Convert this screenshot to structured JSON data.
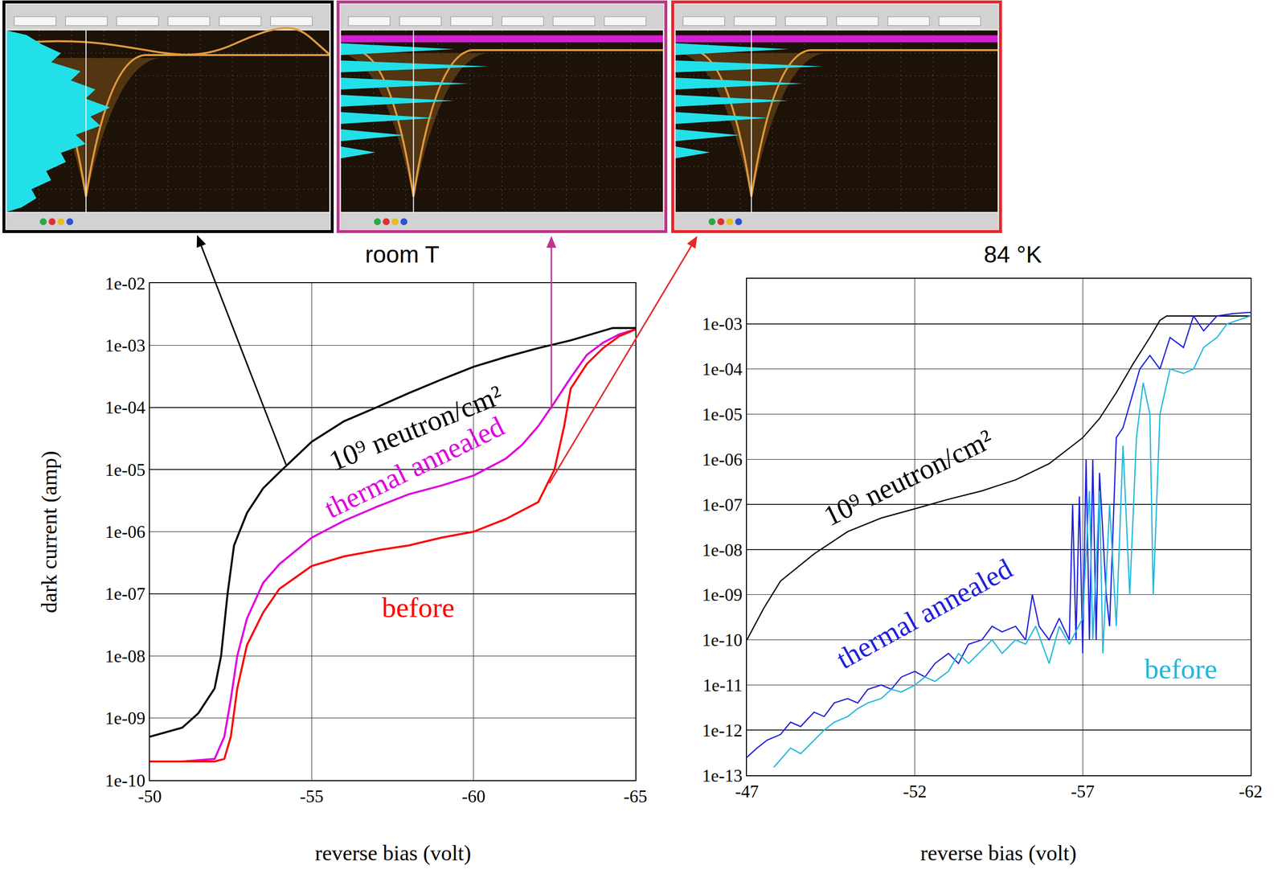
{
  "chart_data": [
    {
      "type": "line",
      "title": "room T",
      "x_label": "reverse bias (volt)",
      "y_label": "dark current (amp)",
      "log": "y",
      "grid": true,
      "xlim": [
        -50,
        -65
      ],
      "xticks": [
        -50,
        -55,
        -60,
        -65
      ],
      "ylim": [
        1e-10,
        0.01
      ],
      "yticks": [
        {
          "value": 1e-10,
          "label": "1e-10"
        },
        {
          "value": 1e-09,
          "label": "1e-09"
        },
        {
          "value": 1e-08,
          "label": "1e-08"
        },
        {
          "value": 1e-07,
          "label": "1e-07"
        },
        {
          "value": 1e-06,
          "label": "1e-06"
        },
        {
          "value": 1e-05,
          "label": "1e-05"
        },
        {
          "value": 0.0001,
          "label": "1e-04"
        },
        {
          "value": 0.001,
          "label": "1e-03"
        },
        {
          "value": 0.01,
          "label": "1e-02"
        }
      ],
      "series": [
        {
          "name": "10⁹ neutron/cm²",
          "color": "#000000",
          "x": [
            -50,
            -51,
            -51.5,
            -52,
            -52.2,
            -52.4,
            -52.6,
            -53,
            -53.5,
            -54,
            -55,
            -56,
            -57,
            -58,
            -59,
            -60,
            -61,
            -62,
            -63,
            -64,
            -64.3,
            -65
          ],
          "values": [
            5e-10,
            7e-10,
            1.2e-09,
            3e-09,
            1e-08,
            1e-07,
            6e-07,
            2e-06,
            5e-06,
            9e-06,
            2.8e-05,
            6e-05,
            0.0001,
            0.00017,
            0.00028,
            0.00045,
            0.00065,
            0.0009,
            0.0012,
            0.0017,
            0.0019,
            0.0019
          ]
        },
        {
          "name": "thermal annealed",
          "color": "#e000e0",
          "x": [
            -50,
            -51,
            -52,
            -52.3,
            -52.5,
            -52.7,
            -53,
            -53.5,
            -54,
            -55,
            -56,
            -57,
            -58,
            -59,
            -60,
            -61,
            -61.5,
            -62,
            -62.5,
            -63,
            -63.5,
            -64,
            -64.5,
            -65
          ],
          "values": [
            2e-10,
            2e-10,
            2.2e-10,
            5e-10,
            2e-09,
            1e-08,
            4e-08,
            1.5e-07,
            3e-07,
            8e-07,
            1.5e-06,
            2.5e-06,
            4e-06,
            5.5e-06,
            8e-06,
            1.5e-05,
            2.5e-05,
            5e-05,
            0.00012,
            0.0003,
            0.0007,
            0.0011,
            0.0015,
            0.0018
          ]
        },
        {
          "name": "before",
          "color": "#ff0000",
          "x": [
            -50,
            -51,
            -52,
            -52.3,
            -52.5,
            -52.7,
            -53,
            -53.5,
            -54,
            -55,
            -56,
            -57,
            -58,
            -59,
            -60,
            -61,
            -62,
            -62.5,
            -62.8,
            -63,
            -63.5,
            -64,
            -64.5,
            -65
          ],
          "values": [
            2e-10,
            2e-10,
            2e-10,
            2.2e-10,
            5e-10,
            3e-09,
            1.5e-08,
            5e-08,
            1.2e-07,
            2.8e-07,
            4e-07,
            5e-07,
            6e-07,
            8e-07,
            1e-06,
            1.6e-06,
            3e-06,
            1e-05,
            5e-05,
            0.0002,
            0.0005,
            0.0009,
            0.0014,
            0.0018
          ]
        }
      ]
    },
    {
      "type": "line",
      "title": "84 °K",
      "x_label": "reverse bias (volt)",
      "log": "y",
      "grid": true,
      "xlim": [
        -47,
        -62
      ],
      "xticks": [
        -47,
        -52,
        -57,
        -62
      ],
      "ylim": [
        1e-13,
        0.01
      ],
      "yticks": [
        {
          "value": 1e-13,
          "label": "1e-13"
        },
        {
          "value": 1e-12,
          "label": "1e-12"
        },
        {
          "value": 1e-11,
          "label": "1e-11"
        },
        {
          "value": 1e-10,
          "label": "1e-10"
        },
        {
          "value": 1e-09,
          "label": "1e-09"
        },
        {
          "value": 1e-08,
          "label": "1e-08"
        },
        {
          "value": 1e-07,
          "label": "1e-07"
        },
        {
          "value": 1e-06,
          "label": "1e-06"
        },
        {
          "value": 1e-05,
          "label": "1e-05"
        },
        {
          "value": 0.0001,
          "label": "1e-04"
        },
        {
          "value": 0.001,
          "label": "1e-03"
        }
      ],
      "series": [
        {
          "name": "10⁹ neutron/cm²",
          "color": "#000000",
          "x": [
            -47,
            -47.5,
            -48,
            -49,
            -50,
            -51,
            -52,
            -53,
            -54,
            -55,
            -56,
            -57,
            -57.5,
            -58,
            -58.5,
            -59,
            -59.3,
            -59.5,
            -62
          ],
          "values": [
            1e-10,
            5e-10,
            2e-09,
            8e-09,
            2.5e-08,
            5e-08,
            8e-08,
            1.3e-07,
            2e-07,
            3.5e-07,
            8e-07,
            3e-06,
            8e-06,
            3e-05,
            0.00013,
            0.0005,
            0.0012,
            0.0015,
            0.0015
          ]
        },
        {
          "name": "thermal annealed",
          "color": "#2020e0",
          "x": [
            -47,
            -47.3,
            -47.6,
            -48,
            -48.3,
            -48.6,
            -49,
            -49.3,
            -49.6,
            -50,
            -50.3,
            -50.6,
            -51,
            -51.3,
            -51.6,
            -52,
            -52.3,
            -52.6,
            -53,
            -53.3,
            -53.6,
            -54,
            -54.3,
            -54.6,
            -55,
            -55.3,
            -55.5,
            -55.7,
            -56,
            -56.3,
            -56.6,
            -56.7,
            -56.8,
            -56.9,
            -57,
            -57.1,
            -57.2,
            -57.3,
            -57.4,
            -57.5,
            -57.7,
            -57.8,
            -58,
            -58.2,
            -58.5,
            -58.7,
            -59,
            -59.3,
            -59.6,
            -60,
            -60.3,
            -60.6,
            -61,
            -61.5,
            -62
          ],
          "values": [
            2.5e-13,
            4e-13,
            6e-13,
            8e-13,
            1.5e-12,
            1.2e-12,
            2.5e-12,
            2e-12,
            4e-12,
            5e-12,
            4e-12,
            8e-12,
            1e-11,
            8e-12,
            1.5e-11,
            2e-11,
            1.5e-11,
            3e-11,
            5e-11,
            3e-11,
            8e-11,
            1e-10,
            2e-10,
            1.5e-10,
            2e-10,
            1e-10,
            1e-09,
            2e-10,
            1e-10,
            3e-10,
            1e-10,
            1e-07,
            1e-10,
            1.5e-07,
            5e-11,
            1e-06,
            1e-10,
            1e-06,
            1e-10,
            5e-07,
            1e-09,
            2e-10,
            3e-06,
            5e-06,
            3e-05,
            0.0001,
            0.0002,
            0.0001,
            0.0005,
            0.0003,
            0.0015,
            0.0007,
            0.0015,
            0.0017,
            0.0018
          ]
        },
        {
          "name": "before",
          "color": "#22b8dc",
          "x": [
            -47.8,
            -48.3,
            -48.6,
            -49,
            -49.3,
            -49.6,
            -50,
            -50.3,
            -50.6,
            -51,
            -51.3,
            -51.6,
            -52,
            -52.3,
            -52.6,
            -53,
            -53.3,
            -53.6,
            -54,
            -54.3,
            -54.6,
            -55,
            -55.3,
            -55.6,
            -56,
            -56.3,
            -56.6,
            -57,
            -57.2,
            -57.3,
            -57.5,
            -57.6,
            -57.8,
            -58,
            -58.2,
            -58.4,
            -58.6,
            -58.8,
            -59,
            -59.1,
            -59.3,
            -59.6,
            -60,
            -60.3,
            -60.6,
            -61,
            -61.3,
            -61.6,
            -62
          ],
          "values": [
            1.5e-13,
            4e-13,
            3e-13,
            6e-13,
            1e-12,
            1.5e-12,
            2e-12,
            3e-12,
            4e-12,
            5e-12,
            8e-12,
            7e-12,
            1e-11,
            1.5e-11,
            1.2e-11,
            2e-11,
            5e-11,
            3e-11,
            6e-11,
            1e-10,
            5e-11,
            1e-10,
            8e-11,
            2e-10,
            3e-11,
            2e-10,
            8e-11,
            3e-10,
            2e-07,
            1e-10,
            2e-07,
            5e-11,
            1e-07,
            2e-10,
            2e-06,
            1e-09,
            3e-06,
            5e-05,
            1e-05,
            1e-09,
            1e-05,
            0.0001,
            8e-05,
            0.0001,
            0.0003,
            0.0005,
            0.001,
            0.0012,
            0.0015
          ]
        }
      ]
    }
  ]
}
